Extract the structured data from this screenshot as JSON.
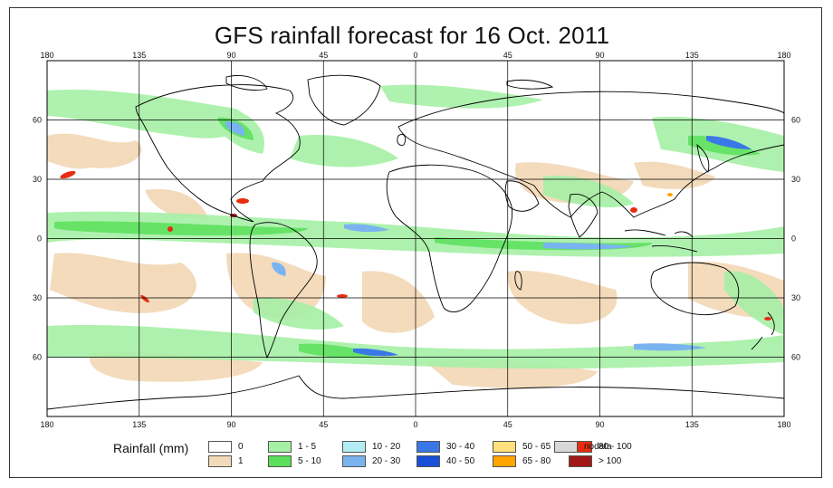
{
  "title": "GFS rainfall forecast for 16 Oct. 2011",
  "map": {
    "lon_ticks_top": [
      "180",
      "135",
      "90",
      "45",
      "0",
      "45",
      "90",
      "135",
      "180"
    ],
    "lon_ticks_bottom": [
      "180",
      "135",
      "90",
      "45",
      "0",
      "45",
      "90",
      "135",
      "180"
    ],
    "lat_ticks_left": [
      "60",
      "30",
      "0",
      "30",
      "60"
    ],
    "lat_ticks_right": [
      "60",
      "30",
      "0",
      "30",
      "60"
    ],
    "lon_range": [
      -180,
      180
    ],
    "lat_range": [
      -90,
      90
    ],
    "grid": true,
    "ocean_color": "#ffffff",
    "land_outline_color": "#000000"
  },
  "legend": {
    "title": "Rainfall (mm)",
    "items": [
      {
        "label": "0",
        "color": "#ffffff"
      },
      {
        "label": "1",
        "color": "#f2d9b8"
      },
      {
        "label": "1 - 5",
        "color": "#a6f0a6"
      },
      {
        "label": "5 - 10",
        "color": "#5ae05a"
      },
      {
        "label": "10 - 20",
        "color": "#b4ecf6"
      },
      {
        "label": "20 - 30",
        "color": "#7ab4f0"
      },
      {
        "label": "30 - 40",
        "color": "#3a78e8"
      },
      {
        "label": "40 - 50",
        "color": "#1a4fd8"
      },
      {
        "label": "50 - 65",
        "color": "#ffe07a"
      },
      {
        "label": "65 - 80",
        "color": "#ffa500"
      },
      {
        "label": "80 - 100",
        "color": "#e82c10"
      },
      {
        "label": "> 100",
        "color": "#a01818"
      },
      {
        "label": "nodata",
        "color": "#d8d8d8"
      }
    ]
  }
}
